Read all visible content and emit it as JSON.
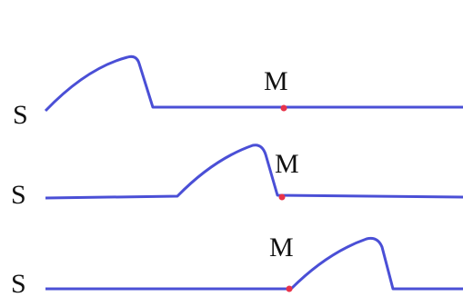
{
  "rows": [
    {
      "source_label": "S",
      "marker_label": "M"
    },
    {
      "source_label": "S",
      "marker_label": "M"
    },
    {
      "source_label": "S",
      "marker_label": "M"
    }
  ]
}
